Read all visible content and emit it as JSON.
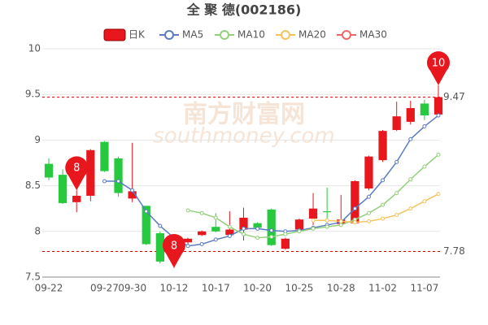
{
  "chart_data": {
    "type": "candlestick",
    "title": "全 聚 德(002186)",
    "watermark": [
      "南方财富网",
      "southmoney.com"
    ],
    "categories": [
      "09-22",
      null,
      null,
      null,
      "09-27",
      null,
      "09-30",
      null,
      null,
      "10-12",
      null,
      null,
      "10-17",
      null,
      null,
      "10-20",
      null,
      null,
      "10-25",
      null,
      null,
      "10-28",
      null,
      null,
      "11-02",
      null,
      null,
      "11-07",
      null
    ],
    "ohlc": {
      "name": "日K",
      "up_color": "#e8161d",
      "down_color": "#27c93f",
      "open": [
        8.74,
        8.62,
        8.32,
        8.39,
        8.98,
        8.8,
        8.36,
        8.28,
        7.98,
        7.77,
        7.88,
        7.96,
        8.05,
        7.96,
        8.02,
        8.09,
        8.24,
        7.81,
        8.02,
        8.14,
        8.22,
        8.08,
        8.09,
        8.47,
        8.78,
        9.11,
        9.2,
        9.4,
        9.28
      ],
      "high": [
        8.8,
        8.68,
        8.45,
        8.9,
        8.99,
        8.82,
        8.97,
        8.28,
        8.0,
        7.84,
        7.93,
        8.01,
        8.2,
        8.22,
        8.26,
        8.1,
        8.25,
        7.93,
        8.14,
        8.42,
        8.48,
        8.4,
        8.56,
        8.83,
        9.11,
        9.42,
        9.43,
        9.44,
        9.6
      ],
      "low": [
        8.56,
        8.3,
        8.21,
        8.33,
        8.65,
        8.38,
        8.32,
        7.85,
        7.65,
        7.6,
        7.84,
        7.95,
        7.99,
        7.94,
        7.9,
        8.02,
        7.84,
        7.8,
        8.0,
        8.07,
        8.1,
        8.07,
        8.08,
        8.45,
        8.76,
        9.1,
        9.17,
        9.22,
        9.27
      ],
      "close": [
        8.59,
        8.31,
        8.39,
        8.89,
        8.66,
        8.42,
        8.44,
        7.86,
        7.67,
        7.82,
        7.92,
        8.0,
        8.0,
        8.02,
        8.15,
        8.04,
        7.85,
        7.92,
        8.13,
        8.25,
        8.21,
        8.13,
        8.55,
        8.82,
        9.1,
        9.26,
        9.35,
        9.27,
        9.47
      ]
    },
    "series": [
      {
        "name": "MA5",
        "color": "#5b7bc0",
        "values": [
          null,
          null,
          null,
          null,
          8.55,
          8.55,
          8.45,
          8.22,
          8.06,
          7.93,
          7.84,
          7.86,
          7.91,
          7.95,
          8.03,
          8.03,
          8.01,
          8.0,
          8.01,
          8.04,
          8.07,
          8.1,
          8.25,
          8.38,
          8.56,
          8.76,
          9.01,
          9.15,
          9.27
        ]
      },
      {
        "name": "MA10",
        "color": "#93d07a",
        "values": [
          null,
          null,
          null,
          null,
          null,
          null,
          null,
          null,
          null,
          null,
          8.23,
          8.2,
          8.15,
          8.05,
          7.97,
          7.93,
          7.94,
          7.97,
          8.0,
          8.03,
          8.05,
          8.07,
          8.13,
          8.2,
          8.29,
          8.42,
          8.57,
          8.71,
          8.84
        ]
      },
      {
        "name": "MA20",
        "color": "#f5c25c",
        "values": [
          null,
          null,
          null,
          null,
          null,
          null,
          null,
          null,
          null,
          null,
          null,
          null,
          null,
          null,
          null,
          null,
          null,
          null,
          null,
          8.12,
          8.12,
          8.11,
          8.1,
          8.11,
          8.14,
          8.18,
          8.25,
          8.33,
          8.41
        ]
      },
      {
        "name": "MA30",
        "color": "#ee6666",
        "values": [
          null,
          null,
          null,
          null,
          null,
          null,
          null,
          null,
          null,
          null,
          null,
          null,
          null,
          null,
          null,
          null,
          null,
          null,
          null,
          null,
          null,
          null,
          null,
          null,
          null,
          null,
          null,
          null,
          null
        ]
      }
    ],
    "ref_lines": [
      9.47,
      7.78
    ],
    "pins": [
      {
        "text": "8",
        "index": 2,
        "value": 8.45
      },
      {
        "text": "8",
        "index": 9,
        "value": 7.6
      },
      {
        "text": "10",
        "index": 28,
        "value": 9.6
      }
    ],
    "pin_color": "#e8161d",
    "ylim": [
      7.5,
      10
    ],
    "yticks": [
      7.5,
      8,
      8.5,
      9,
      9.5,
      10
    ],
    "grid": true
  }
}
